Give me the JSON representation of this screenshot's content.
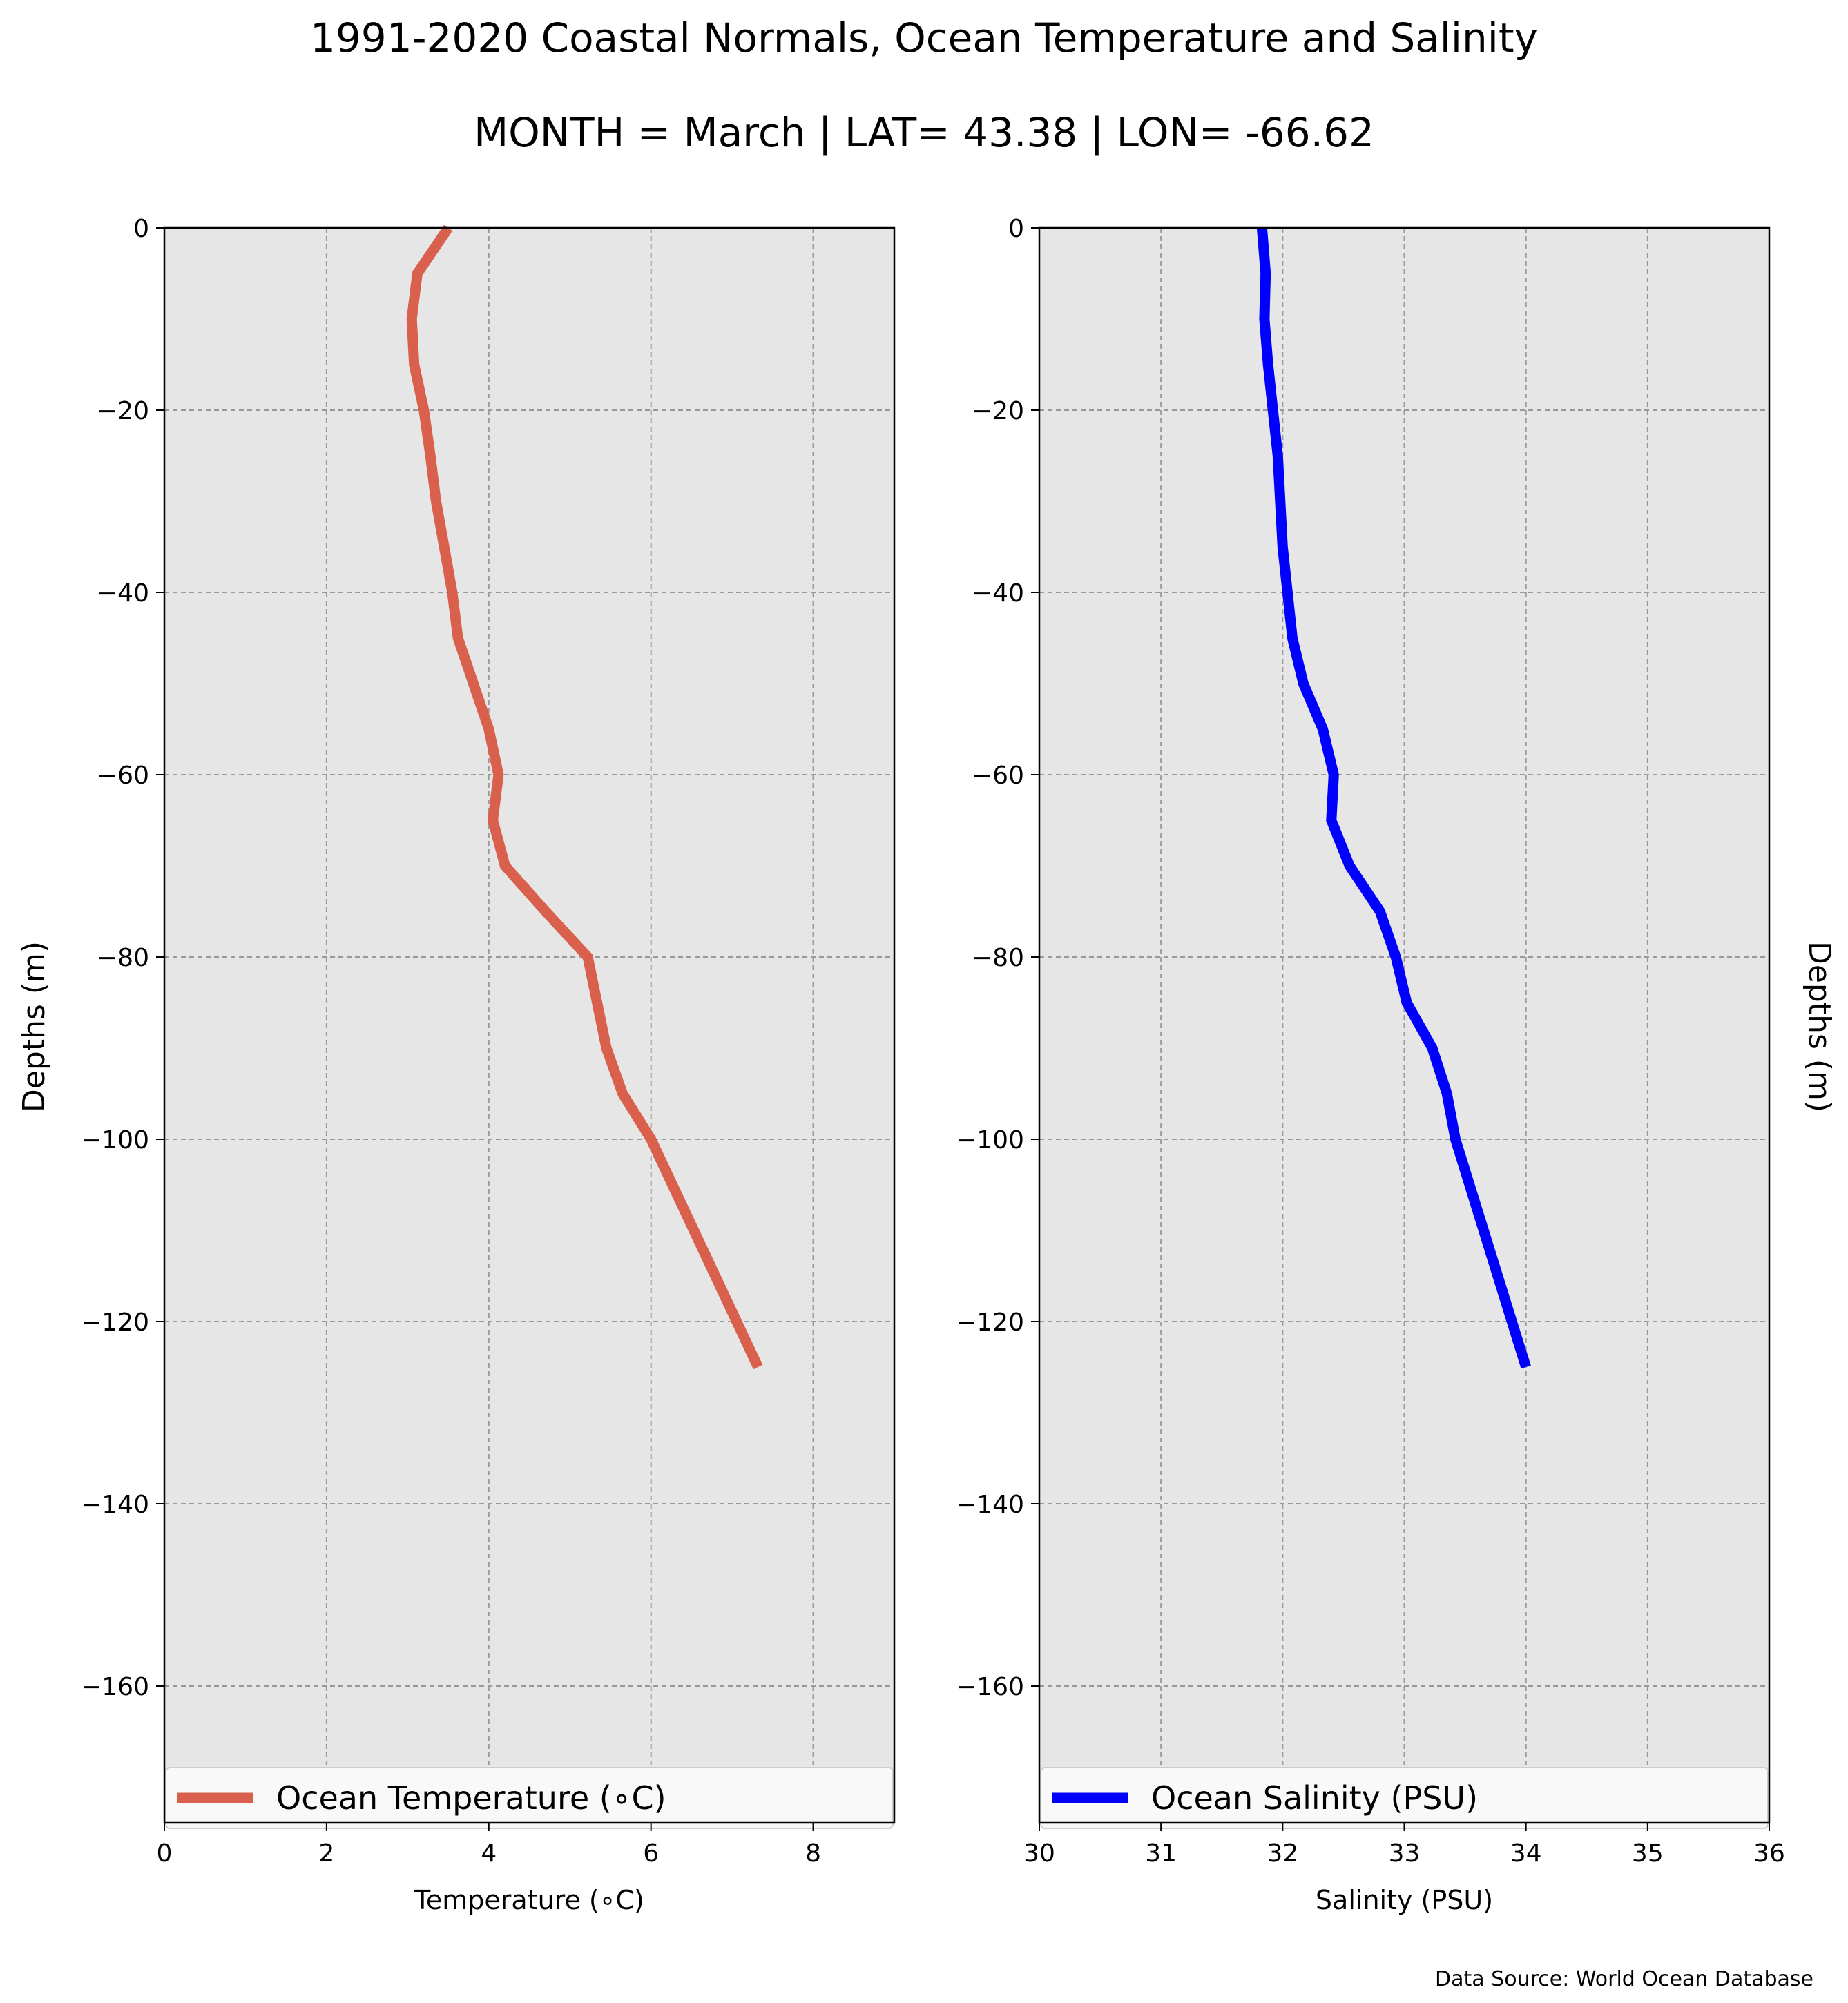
{
  "title": "1991-2020 Coastal Normals, Ocean Temperature and Salinity",
  "subtitle": "MONTH = March | LAT= 43.38 | LON= -66.62",
  "source": "Data Source: World Ocean Database",
  "colors": {
    "temperature": "#d9604c",
    "salinity": "#0000ff",
    "panel_bg": "#e6e6e6",
    "grid": "#999999"
  },
  "chart_data": [
    {
      "type": "line",
      "xlabel": "Temperature (∘C)",
      "ylabel": "Depths (m)",
      "xlim": [
        0,
        9
      ],
      "ylim": [
        -175,
        0
      ],
      "xticks": [
        0,
        2,
        4,
        6,
        8
      ],
      "xtick_labels": [
        "0",
        "2",
        "4",
        "6",
        "8"
      ],
      "yticks": [
        0,
        -20,
        -40,
        -60,
        -80,
        -100,
        -120,
        -140,
        -160
      ],
      "ytick_labels": [
        "0",
        "−20",
        "−40",
        "−60",
        "−80",
        "−100",
        "−120",
        "−140",
        "−160"
      ],
      "grid": true,
      "legend_position": "bottom",
      "series": [
        {
          "name": "Ocean Temperature (∘C)",
          "x": [
            3.5,
            3.12,
            3.05,
            3.08,
            3.2,
            3.28,
            3.35,
            3.45,
            3.55,
            3.62,
            4.0,
            4.12,
            4.05,
            4.2,
            4.7,
            5.22,
            5.45,
            5.65,
            6.0,
            7.32
          ],
          "y": [
            0,
            -5,
            -10,
            -15,
            -20,
            -25,
            -30,
            -35,
            -40,
            -45,
            -55,
            -60,
            -65,
            -70,
            -75,
            -80,
            -90,
            -95,
            -100,
            -125
          ]
        }
      ]
    },
    {
      "type": "line",
      "xlabel": "Salinity (PSU)",
      "ylabel": "Depths (m)",
      "xlim": [
        30,
        36
      ],
      "ylim": [
        -175,
        0
      ],
      "xticks": [
        30,
        31,
        32,
        33,
        34,
        35,
        36
      ],
      "xtick_labels": [
        "30",
        "31",
        "32",
        "33",
        "34",
        "35",
        "36"
      ],
      "yticks": [
        0,
        -20,
        -40,
        -60,
        -80,
        -100,
        -120,
        -140,
        -160
      ],
      "ytick_labels": [
        "0",
        "−20",
        "−40",
        "−60",
        "−80",
        "−100",
        "−120",
        "−140",
        "−160"
      ],
      "grid": true,
      "legend_position": "bottom",
      "series": [
        {
          "name": "Ocean Salinity (PSU)",
          "x": [
            31.83,
            31.86,
            31.85,
            31.88,
            31.92,
            31.96,
            31.98,
            32.0,
            32.04,
            32.08,
            32.17,
            32.33,
            32.42,
            32.4,
            32.55,
            32.8,
            32.93,
            33.02,
            33.23,
            33.35,
            33.42,
            34.0
          ],
          "y": [
            0,
            -5,
            -10,
            -15,
            -20,
            -25,
            -30,
            -35,
            -40,
            -45,
            -50,
            -55,
            -60,
            -65,
            -70,
            -75,
            -80,
            -85,
            -90,
            -95,
            -100,
            -125
          ]
        }
      ]
    }
  ]
}
